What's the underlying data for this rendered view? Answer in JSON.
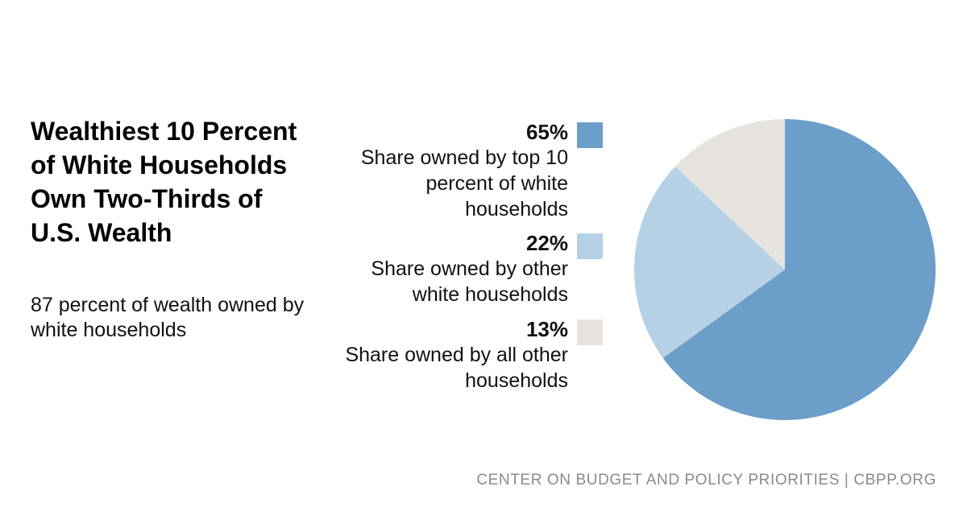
{
  "title": "Wealthiest 10 Percent of White Households Own Two-Thirds of U.S. Wealth",
  "subtitle": "87 percent of wealth owned by white households",
  "source": "CENTER ON BUDGET AND POLICY PRIORITIES | CBPP.ORG",
  "chart_data": {
    "type": "pie",
    "title": "Wealthiest 10 Percent of White Households Own Two-Thirds of U.S. Wealth",
    "subtitle": "87 percent of wealth owned by white households",
    "legend_placement": "left",
    "slices": [
      {
        "value": 65,
        "value_label": "65%",
        "label": "Share owned by top 10 percent of white households",
        "color": "#6b9ec8"
      },
      {
        "value": 22,
        "value_label": "22%",
        "label": "Share owned by other white households",
        "color": "#b6d1e6"
      },
      {
        "value": 13,
        "value_label": "13%",
        "label": "Share owned by all other households",
        "color": "#e6e3df"
      }
    ]
  }
}
